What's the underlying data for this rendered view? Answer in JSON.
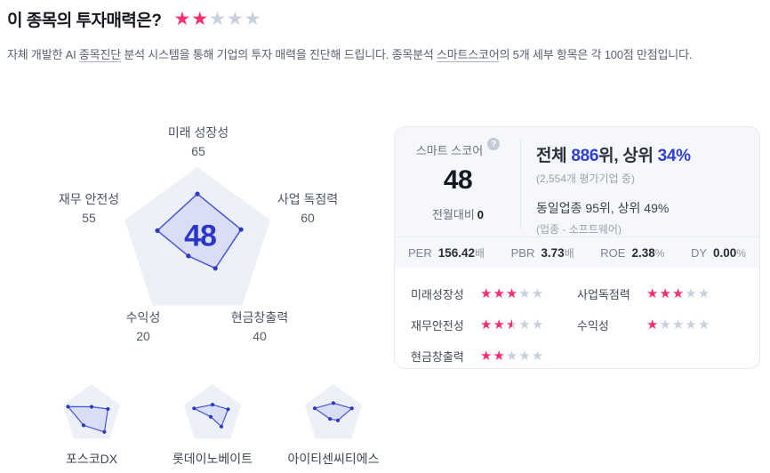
{
  "colors": {
    "accent_blue": "#2e3fd4",
    "radar_stroke": "#4656d4",
    "radar_dot": "#2c39c0",
    "radar_fill": "rgba(80,97,218,0.13)",
    "pentagon_bg": "#eef0f8",
    "star_filled": "#f82e6d",
    "star_empty": "#c7d0dd"
  },
  "icons": {
    "star": "★",
    "help": "?"
  },
  "header": {
    "title": "이 종목의 투자매력은?",
    "rating": 2,
    "rating_max": 5
  },
  "subtitle": {
    "part1": "자체 개발한 AI ",
    "term1": "종목진단",
    "part2": " 분석 시스템을 통해 기업의 투자 매력을 진단해 드립니다. 종목분석 ",
    "term2": "스마트스코어",
    "part3": "의 5개 세부 항목은 각 100점 만점입니다."
  },
  "chart_data": {
    "type": "radar",
    "title": "종목분석 스마트스코어",
    "max": 100,
    "axes": [
      {
        "label": "미래 성장성",
        "value": 65
      },
      {
        "label": "사업 독점력",
        "value": 60
      },
      {
        "label": "현금창출력",
        "value": 40
      },
      {
        "label": "수익성",
        "value": 20
      },
      {
        "label": "재무 안전성",
        "value": 55
      }
    ],
    "center_score": "48",
    "mini_charts": [
      {
        "name": "포스코DX",
        "values": [
          25,
          57,
          72,
          45,
          82
        ]
      },
      {
        "name": "롯데이노베이트",
        "values": [
          32,
          54,
          50,
          10,
          64
        ]
      },
      {
        "name": "아이티센씨티에스",
        "values": [
          37,
          64,
          25,
          19,
          65
        ]
      }
    ]
  },
  "score_card": {
    "score_label": "스마트 스코어",
    "score": "48",
    "month_change_label": "전월대비",
    "month_change_value": "0",
    "rank_line": {
      "t1": "전체 ",
      "n1": "886",
      "t2": "위, 상위 ",
      "n2": "34%"
    },
    "rank_note": "(2,554개 평가기업 중)",
    "industry_line": "동일업종 95위, 상위 49%",
    "industry_note": "(업종 - 소프트웨어)",
    "stats": [
      {
        "label": "PER",
        "value": "156.42",
        "unit": "배"
      },
      {
        "label": "PBR",
        "value": "3.73",
        "unit": "배"
      },
      {
        "label": "ROE",
        "value": "2.38",
        "unit": "%"
      },
      {
        "label": "DY",
        "value": "0.00",
        "unit": "%"
      }
    ],
    "ratings": [
      {
        "label": "미래성장성",
        "stars": 3
      },
      {
        "label": "사업독점력",
        "stars": 3
      },
      {
        "label": "재무안전성",
        "stars": 2.5
      },
      {
        "label": "수익성",
        "stars": 1
      },
      {
        "label": "현금창출력",
        "stars": 2
      }
    ]
  }
}
